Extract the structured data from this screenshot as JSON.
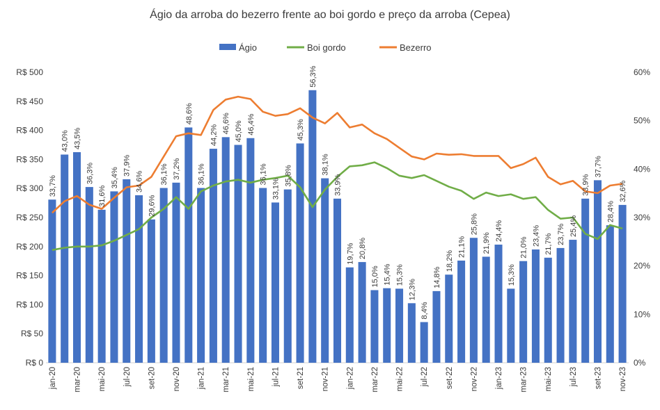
{
  "chart_data": {
    "type": "bar",
    "title": "Ágio da arroba do bezerro frente ao boi gordo e preço da arroba (Cepea)",
    "legend_position": "top-center",
    "legend": [
      "Ágio",
      "Boi gordo",
      "Bezerro"
    ],
    "colors": {
      "agio": "#4472C4",
      "boi": "#70AD47",
      "bezerro": "#ED7D31"
    },
    "y_left": {
      "ylim": [
        0,
        500
      ],
      "ticks": [
        0,
        50,
        100,
        150,
        200,
        250,
        300,
        350,
        400,
        450,
        500
      ],
      "tick_labels": [
        "R$ 0",
        "R$ 50",
        "R$ 100",
        "R$ 150",
        "R$ 200",
        "R$ 250",
        "R$ 300",
        "R$ 350",
        "R$ 400",
        "R$ 450",
        "R$ 500"
      ]
    },
    "y_right": {
      "ylim": [
        0,
        60
      ],
      "ticks": [
        0,
        10,
        20,
        30,
        40,
        50,
        60
      ],
      "tick_labels": [
        "0%",
        "10%",
        "20%",
        "30%",
        "40%",
        "50%",
        "60%"
      ]
    },
    "categories": [
      "jan-20",
      "fev-20",
      "mar-20",
      "abr-20",
      "mai-20",
      "jun-20",
      "jul-20",
      "ago-20",
      "set-20",
      "out-20",
      "nov-20",
      "dez-20",
      "jan-21",
      "fev-21",
      "mar-21",
      "abr-21",
      "mai-21",
      "jun-21",
      "jul-21",
      "ago-21",
      "set-21",
      "out-21",
      "nov-21",
      "dez-21",
      "jan-22",
      "fev-22",
      "mar-22",
      "abr-22",
      "mai-22",
      "jun-22",
      "jul-22",
      "ago-22",
      "set-22",
      "out-22",
      "nov-22",
      "dez-22",
      "jan-23",
      "fev-23",
      "mar-23",
      "abr-23",
      "mai-23",
      "jun-23",
      "jul-23",
      "ago-23",
      "set-23",
      "out-23",
      "nov-23"
    ],
    "shown_x_labels": [
      "jan-20",
      "mar-20",
      "mai-20",
      "jul-20",
      "set-20",
      "nov-20",
      "jan-21",
      "mar-21",
      "mai-21",
      "jul-21",
      "set-21",
      "nov-21",
      "jan-22",
      "mar-22",
      "mai-22",
      "jul-22",
      "set-22",
      "nov-22",
      "jan-23",
      "mar-23",
      "mai-23",
      "jul-23",
      "set-23",
      "nov-23"
    ],
    "series": [
      {
        "name": "Ágio",
        "type": "bar",
        "axis": "right",
        "values": [
          33.7,
          43.0,
          43.5,
          36.3,
          31.6,
          35.4,
          37.9,
          34.6,
          29.6,
          36.1,
          37.2,
          48.6,
          36.1,
          44.2,
          46.6,
          45.0,
          46.4,
          36.1,
          33.1,
          35.8,
          45.3,
          56.3,
          38.1,
          33.9,
          19.7,
          20.8,
          15.0,
          15.4,
          15.3,
          12.3,
          8.4,
          14.8,
          18.2,
          21.1,
          25.8,
          21.9,
          24.4,
          15.3,
          21.0,
          23.4,
          21.7,
          23.7,
          25.4,
          33.9,
          37.7,
          28.4,
          32.6
        ],
        "labels": [
          "33,7%",
          "43,0%",
          "43,5%",
          "36,3%",
          "31,6%",
          "35,4%",
          "37,9%",
          "34,6%",
          "29,6%",
          "36,1%",
          "37,2%",
          "48,6%",
          "36,1%",
          "44,2%",
          "46,6%",
          "45,0%",
          "46,4%",
          "36,1%",
          "33,1%",
          "35,8%",
          "45,3%",
          "56,3%",
          "38,1%",
          "33,9%",
          "19,7%",
          "20,8%",
          "15,0%",
          "15,4%",
          "15,3%",
          "12,3%",
          "8,4%",
          "14,8%",
          "18,2%",
          "21,1%",
          "25,8%",
          "21,9%",
          "24,4%",
          "15,3%",
          "21,0%",
          "23,4%",
          "21,7%",
          "23,7%",
          "25,4%",
          "33,9%",
          "37,7%",
          "28,4%",
          "32,6%"
        ]
      },
      {
        "name": "Boi gordo",
        "type": "line",
        "axis": "left",
        "values": [
          194,
          198,
          200,
          200,
          202,
          210,
          220,
          230,
          250,
          265,
          285,
          265,
          295,
          305,
          312,
          315,
          310,
          315,
          318,
          322,
          302,
          268,
          298,
          320,
          338,
          340,
          345,
          335,
          322,
          318,
          323,
          313,
          303,
          296,
          282,
          293,
          287,
          290,
          282,
          285,
          263,
          248,
          250,
          222,
          213,
          237,
          231
        ]
      },
      {
        "name": "Bezerro",
        "type": "line",
        "axis": "left",
        "values": [
          258,
          278,
          287,
          272,
          265,
          284,
          302,
          305,
          320,
          355,
          390,
          395,
          392,
          435,
          453,
          458,
          454,
          432,
          425,
          428,
          438,
          422,
          412,
          430,
          405,
          410,
          395,
          385,
          370,
          355,
          350,
          360,
          358,
          359,
          356,
          356,
          356,
          335,
          342,
          353,
          320,
          307,
          313,
          295,
          292,
          305,
          308
        ]
      }
    ]
  }
}
